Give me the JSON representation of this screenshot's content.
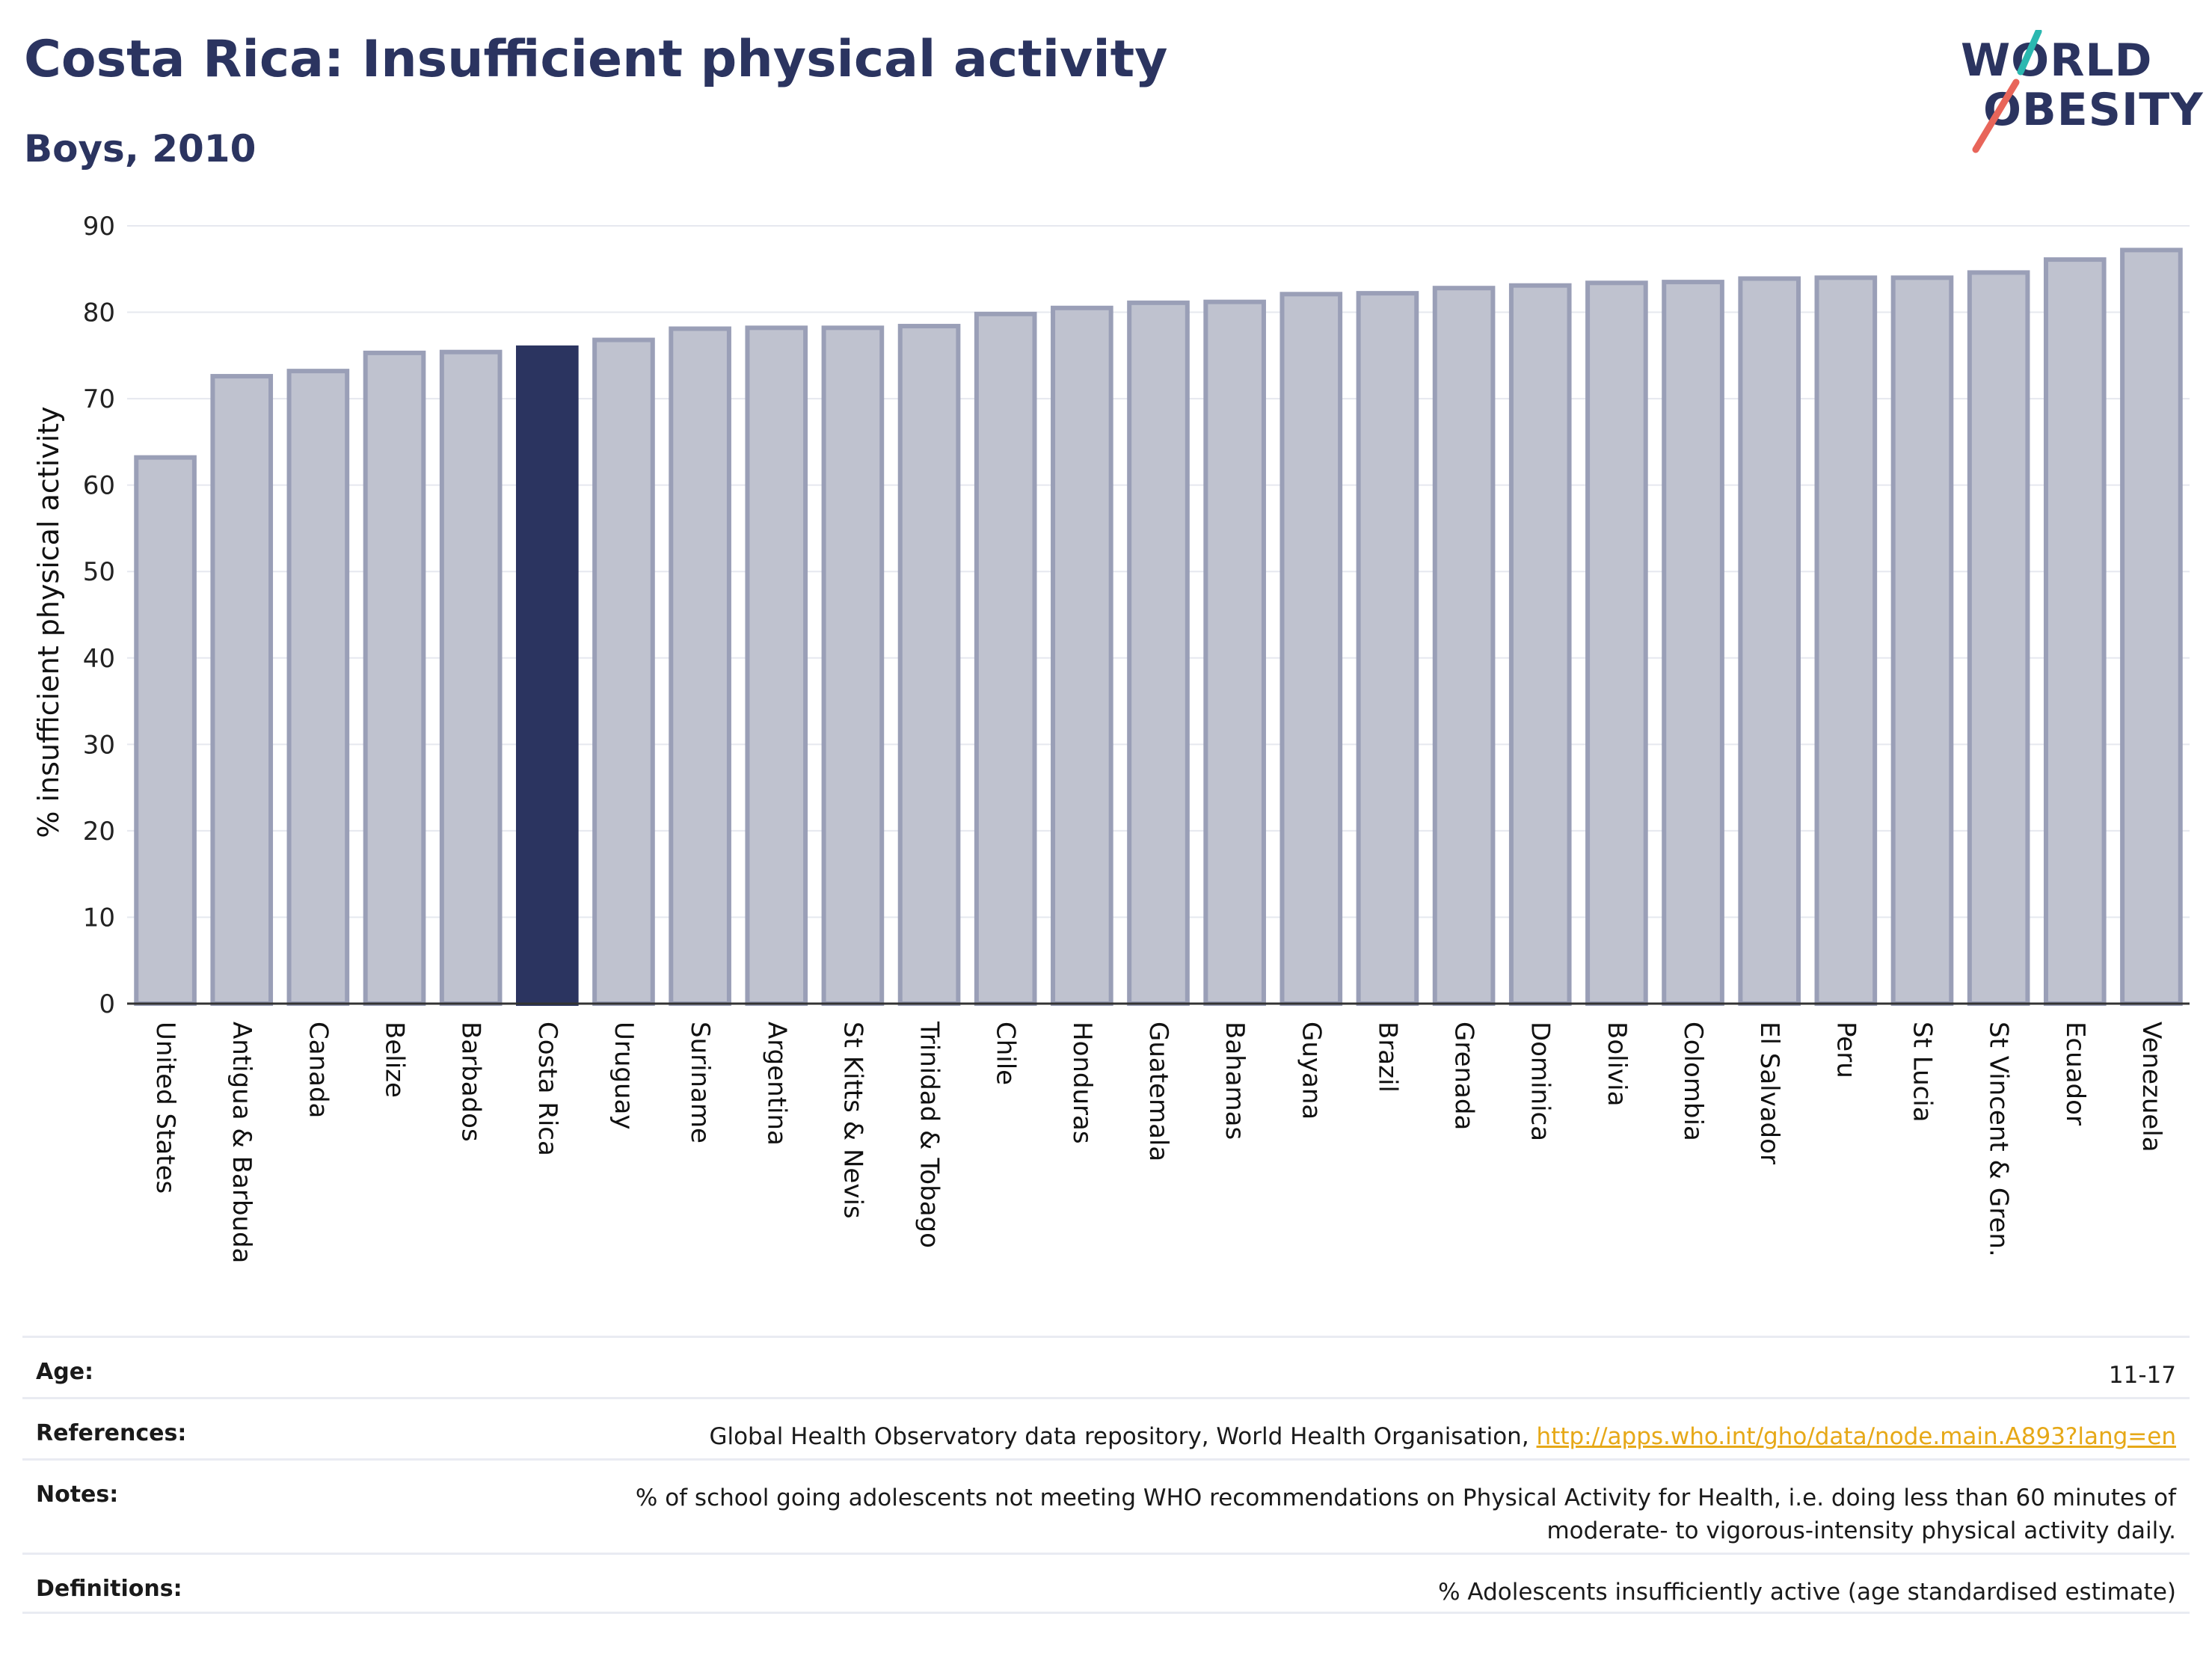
{
  "header": {
    "title": "Costa Rica: Insufficient physical activity",
    "subtitle": "Boys, 2010"
  },
  "logo": {
    "line1": "WORLD",
    "line2": "OBESITY",
    "accent_teal": "#2bb8b0",
    "accent_red": "#e8655a"
  },
  "colors": {
    "bar": "#bfc2cf",
    "bar_border": "#9a9fb7",
    "highlight": "#2b3460",
    "grid": "#e6e8ef",
    "axis": "#333333"
  },
  "chart_data": {
    "type": "bar",
    "ylabel": "% insufficient physical activity",
    "ylim": [
      0,
      90
    ],
    "yticks": [
      0,
      10,
      20,
      30,
      40,
      50,
      60,
      70,
      80,
      90
    ],
    "highlight": "Costa Rica",
    "categories": [
      "United States",
      "Antigua & Barbuda",
      "Canada",
      "Belize",
      "Barbados",
      "Costa Rica",
      "Uruguay",
      "Suriname",
      "Argentina",
      "St Kitts & Nevis",
      "Trinidad & Tobago",
      "Chile",
      "Honduras",
      "Guatemala",
      "Bahamas",
      "Guyana",
      "Brazil",
      "Grenada",
      "Dominica",
      "Bolivia",
      "Colombia",
      "El Salvador",
      "Peru",
      "St Lucia",
      "St Vincent & Gren.",
      "Ecuador",
      "Venezuela"
    ],
    "values": [
      63.2,
      72.6,
      73.2,
      75.3,
      75.4,
      75.9,
      76.8,
      78.1,
      78.2,
      78.2,
      78.4,
      79.8,
      80.5,
      81.1,
      81.2,
      82.1,
      82.2,
      82.8,
      83.1,
      83.4,
      83.5,
      83.9,
      84.0,
      84.0,
      84.6,
      86.1,
      87.2
    ],
    "grid": true
  },
  "meta": {
    "age_label": "Age:",
    "age_value": "11-17",
    "references_label": "References:",
    "references_text": "Global Health Observatory data repository, World Health Organisation,",
    "references_link": "http://apps.who.int/gho/data/node.main.A893?lang=en",
    "notes_label": "Notes:",
    "notes_line1": "% of school going adolescents not meeting WHO recommendations on Physical Activity for Health, i.e. doing less than 60 minutes of",
    "notes_line2": "moderate- to vigorous-intensity physical activity daily.",
    "definitions_label": "Definitions:",
    "definitions_value": "% Adolescents insufficiently active (age standardised estimate)"
  }
}
